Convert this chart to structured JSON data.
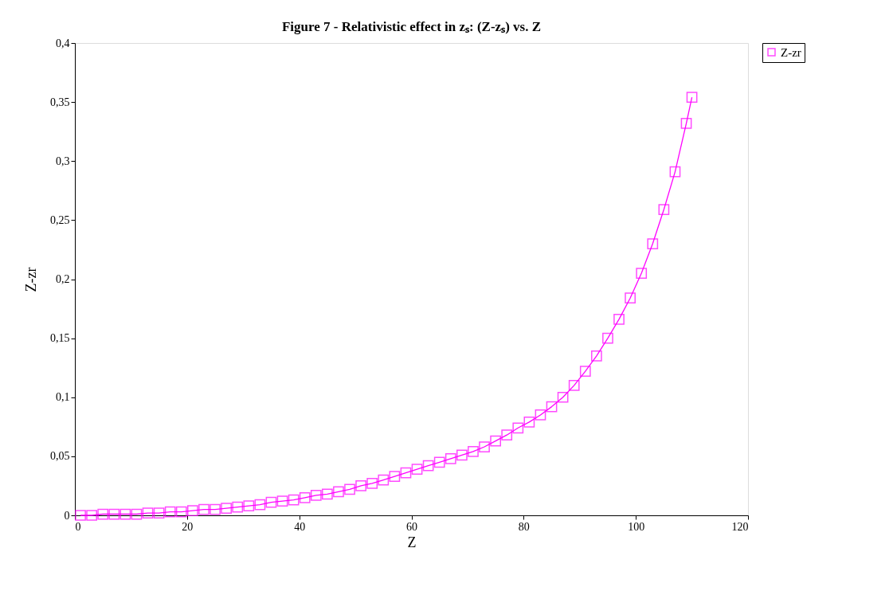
{
  "chart_data": {
    "type": "line",
    "title": "Figure 7 - Relativistic effect in zₛ: (Z-zₛ) vs. Z",
    "xlabel": "Z",
    "ylabel": "Z-zr",
    "x": [
      1,
      3,
      5,
      7,
      9,
      11,
      13,
      15,
      17,
      19,
      21,
      23,
      25,
      27,
      29,
      31,
      33,
      35,
      37,
      39,
      41,
      43,
      45,
      47,
      49,
      51,
      53,
      55,
      57,
      59,
      61,
      63,
      65,
      67,
      69,
      71,
      73,
      75,
      77,
      79,
      81,
      83,
      85,
      87,
      89,
      91,
      93,
      95,
      97,
      99,
      101,
      103,
      105,
      107,
      109,
      110
    ],
    "series": [
      {
        "name": "Z-zr",
        "color": "#ff00ff",
        "values": [
          0.0,
          0.0,
          0.001,
          0.001,
          0.001,
          0.001,
          0.002,
          0.002,
          0.003,
          0.003,
          0.004,
          0.005,
          0.005,
          0.006,
          0.007,
          0.008,
          0.009,
          0.011,
          0.012,
          0.013,
          0.015,
          0.017,
          0.018,
          0.02,
          0.022,
          0.025,
          0.027,
          0.03,
          0.033,
          0.036,
          0.039,
          0.042,
          0.045,
          0.048,
          0.051,
          0.054,
          0.058,
          0.063,
          0.068,
          0.074,
          0.079,
          0.085,
          0.092,
          0.1,
          0.11,
          0.122,
          0.135,
          0.15,
          0.166,
          0.184,
          0.205,
          0.23,
          0.259,
          0.291,
          0.332,
          0.354
        ]
      }
    ],
    "xlim": [
      0,
      120
    ],
    "xticks": [
      0,
      20,
      40,
      60,
      80,
      100,
      120
    ],
    "ylim": [
      0,
      0.4
    ],
    "yticks": [
      0,
      {
        "value": 0.05,
        "label": "0,05"
      },
      {
        "value": 0.1,
        "label": "0,1"
      },
      {
        "value": 0.15,
        "label": "0,15"
      },
      {
        "value": 0.2,
        "label": "0,2"
      },
      {
        "value": 0.25,
        "label": "0,25"
      },
      {
        "value": 0.3,
        "label": "0,3"
      },
      {
        "value": 0.35,
        "label": "0,35"
      },
      {
        "value": 0.4,
        "label": "0,4"
      }
    ],
    "marker": "square",
    "line_style": "solid",
    "grid": false,
    "legend": "right"
  }
}
